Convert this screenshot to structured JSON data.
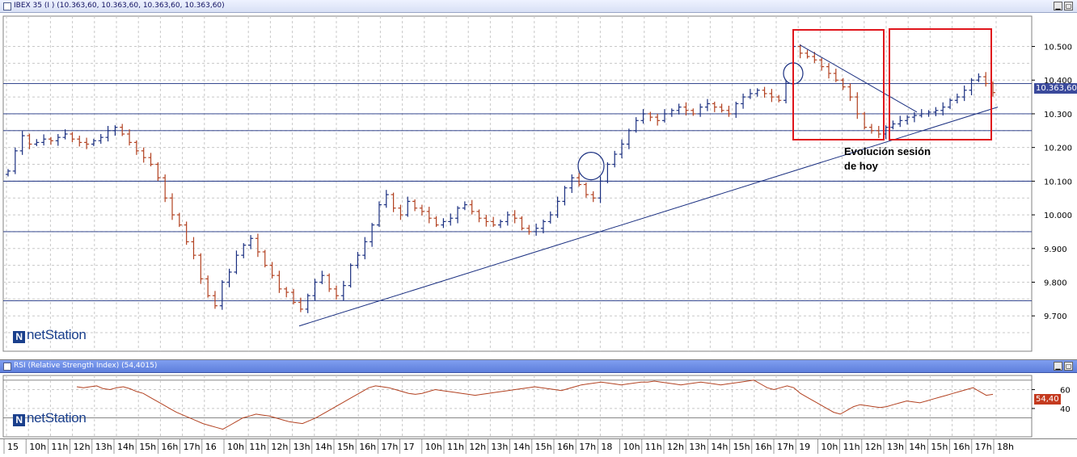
{
  "price_pane": {
    "title": "IBEX 35 (I ) (10.363,60, 10.363,60, 10.363,60, 10.363,60)",
    "current_price_tag": "10.363,60",
    "logo_text": "netStation",
    "annotation": [
      "Evolución sesión",
      "de hoy"
    ]
  },
  "rsi_pane": {
    "title": "RSI (Relative Strength Index) (54,4015)",
    "current_value_tag": "54,40",
    "logo_text": "netStation"
  },
  "icons": {
    "pane_icon": "chart-window-icon",
    "minimize": "minimize-icon",
    "maximize": "maximize-icon"
  },
  "colors": {
    "up_bar": "#1a2f80",
    "down_bar": "#b24120",
    "trendline": "#1a2f80",
    "rsi_line": "#b24120",
    "highlight_box": "#e0151c",
    "grid": "#c8c8c8"
  },
  "chart_data": [
    {
      "type": "bar",
      "subtype": "ohlc",
      "series_name": "IBEX 35",
      "y_ticks": [
        "10.500",
        "10.400",
        "10.300",
        "10.200",
        "10.100",
        "10.000",
        "9.900",
        "9.800",
        "9.700"
      ],
      "ylim": [
        9595,
        10590
      ],
      "grid": true,
      "x_tick_labels": [
        "15",
        "10h",
        "11h",
        "12h",
        "13h",
        "14h",
        "15h",
        "16h",
        "17h",
        "16",
        "10h",
        "11h",
        "12h",
        "13h",
        "14h",
        "15h",
        "16h",
        "17h",
        "17",
        "10h",
        "11h",
        "12h",
        "13h",
        "14h",
        "15h",
        "16h",
        "17h",
        "18",
        "10h",
        "11h",
        "12h",
        "13h",
        "14h",
        "15h",
        "16h",
        "17h",
        "19",
        "10h",
        "11h",
        "12h",
        "13h",
        "14h",
        "15h",
        "16h",
        "17h",
        "18h"
      ],
      "horizontal_levels": [
        10390,
        10300,
        10250,
        10100,
        9950,
        9745
      ],
      "trendlines": [
        {
          "from": {
            "bar": 0,
            "value": 9670
          },
          "to": {
            "bar": 1,
            "value": 10320
          }
        },
        {
          "from": {
            "bar": 2,
            "value": 10505
          },
          "to": {
            "bar": 3,
            "value": 10305
          }
        }
      ],
      "closes": [
        10130,
        10190,
        10235,
        10210,
        10215,
        10225,
        10220,
        10230,
        10240,
        10225,
        10215,
        10210,
        10220,
        10230,
        10250,
        10260,
        10240,
        10215,
        10190,
        10170,
        10150,
        10110,
        10050,
        10000,
        9970,
        9920,
        9880,
        9810,
        9760,
        9730,
        9800,
        9830,
        9880,
        9910,
        9930,
        9890,
        9850,
        9820,
        9780,
        9770,
        9740,
        9720,
        9760,
        9800,
        9820,
        9780,
        9760,
        9790,
        9850,
        9880,
        9920,
        9970,
        10030,
        10060,
        10020,
        10000,
        10040,
        10020,
        10010,
        9990,
        9970,
        9980,
        9990,
        10020,
        10030,
        10010,
        9990,
        9980,
        9970,
        9980,
        10000,
        9990,
        9960,
        9950,
        9960,
        9980,
        10000,
        10040,
        10080,
        10110,
        10090,
        10060,
        10050,
        10100,
        10150,
        10180,
        10210,
        10250,
        10280,
        10300,
        10290,
        10280,
        10300,
        10310,
        10320,
        10310,
        10300,
        10320,
        10330,
        10320,
        10310,
        10300,
        10330,
        10350,
        10360,
        10370,
        10360,
        10350,
        10340,
        10390,
        10500,
        10480,
        10470,
        10460,
        10440,
        10420,
        10400,
        10380,
        10350,
        10300,
        10260,
        10250,
        10240,
        10260,
        10270,
        10280,
        10290,
        10295,
        10300,
        10305,
        10310,
        10320,
        10340,
        10350,
        10370,
        10400,
        10410,
        10390,
        10363
      ]
    },
    {
      "type": "line",
      "series_name": "RSI",
      "y_ticks": [
        "60",
        "40"
      ],
      "ylim": [
        10,
        75
      ],
      "grid": true,
      "values": [
        63,
        62,
        63,
        64,
        61,
        60,
        62,
        63,
        61,
        58,
        56,
        52,
        48,
        44,
        40,
        36,
        33,
        30,
        27,
        24,
        22,
        20,
        18,
        22,
        26,
        30,
        32,
        34,
        33,
        32,
        30,
        28,
        26,
        25,
        24,
        27,
        30,
        34,
        38,
        42,
        46,
        50,
        54,
        58,
        62,
        64,
        63,
        62,
        60,
        58,
        56,
        55,
        56,
        58,
        60,
        59,
        58,
        57,
        56,
        55,
        54,
        55,
        56,
        57,
        58,
        59,
        60,
        61,
        62,
        63,
        62,
        61,
        60,
        59,
        61,
        63,
        65,
        66,
        67,
        68,
        67,
        66,
        65,
        66,
        67,
        68,
        68,
        69,
        68,
        67,
        66,
        65,
        66,
        67,
        68,
        67,
        66,
        65,
        66,
        67,
        68,
        69,
        70,
        66,
        62,
        60,
        62,
        64,
        62,
        56,
        52,
        48,
        44,
        40,
        36,
        34,
        38,
        42,
        44,
        43,
        42,
        41,
        42,
        44,
        46,
        48,
        47,
        46,
        48,
        50,
        52,
        54,
        56,
        58,
        60,
        62,
        58,
        54,
        55
      ]
    }
  ]
}
